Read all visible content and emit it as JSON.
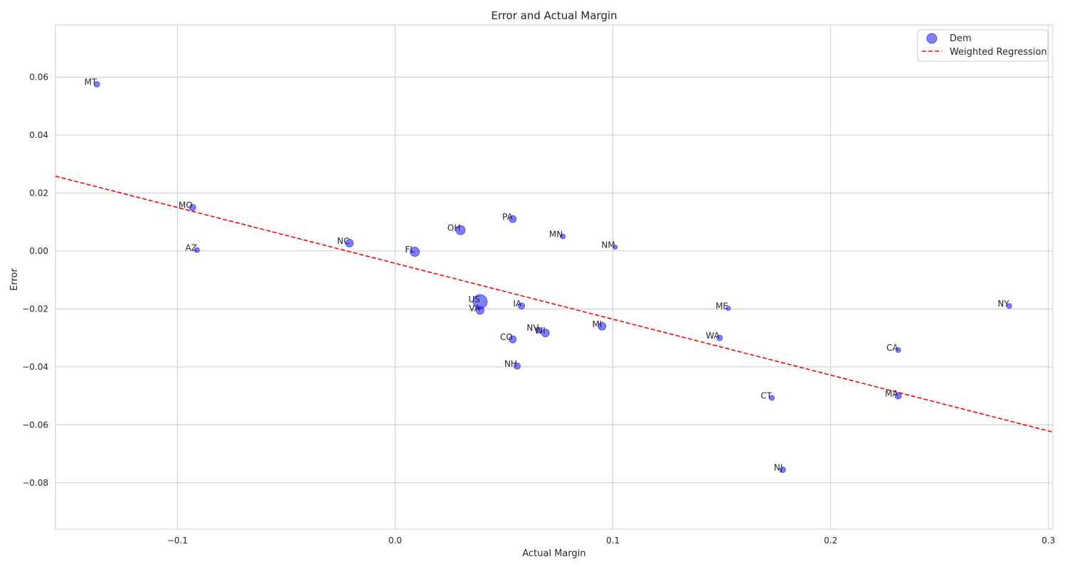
{
  "chart_data": {
    "type": "scatter",
    "title": "Error and Actual Margin",
    "xlabel": "Actual Margin",
    "ylabel": "Error",
    "xlim": [
      -0.156,
      0.302
    ],
    "ylim": [
      -0.096,
      0.078
    ],
    "x_ticks": [
      -0.1,
      0.0,
      0.1,
      0.2,
      0.3
    ],
    "x_tick_labels": [
      "−0.1",
      "0.0",
      "0.1",
      "0.2",
      "0.3"
    ],
    "y_ticks": [
      0.06,
      0.04,
      0.02,
      0.0,
      -0.02,
      -0.04,
      -0.06,
      -0.08
    ],
    "y_tick_labels": [
      "0.06",
      "0.04",
      "0.02",
      "0.00",
      "−0.02",
      "−0.04",
      "−0.06",
      "−0.08"
    ],
    "grid": true,
    "legend": {
      "placement": "top-right",
      "entries": [
        "Dem",
        "Weighted Regression"
      ]
    },
    "series": [
      {
        "name": "Dem",
        "color": "#0000ff",
        "points": [
          {
            "label": "MT",
            "x": -0.137,
            "y": 0.0575,
            "size": 4
          },
          {
            "label": "MO",
            "x": -0.093,
            "y": 0.015,
            "size": 4.5
          },
          {
            "label": "AZ",
            "x": -0.091,
            "y": 0.0003,
            "size": 3.5
          },
          {
            "label": "NC",
            "x": -0.021,
            "y": 0.0027,
            "size": 5.5
          },
          {
            "label": "FL",
            "x": 0.009,
            "y": -0.0003,
            "size": 6.5
          },
          {
            "label": "OH",
            "x": 0.03,
            "y": 0.0072,
            "size": 6.5
          },
          {
            "label": "PA",
            "x": 0.054,
            "y": 0.011,
            "size": 5
          },
          {
            "label": "MN",
            "x": 0.077,
            "y": 0.005,
            "size": 3.5
          },
          {
            "label": "NM",
            "x": 0.101,
            "y": 0.0013,
            "size": 3
          },
          {
            "label": "US",
            "x": 0.039,
            "y": -0.0175,
            "size": 10
          },
          {
            "label": "VA",
            "x": 0.039,
            "y": -0.0205,
            "size": 5.5
          },
          {
            "label": "IA",
            "x": 0.058,
            "y": -0.019,
            "size": 4.5
          },
          {
            "label": "NV",
            "x": 0.066,
            "y": -0.0273,
            "size": 4
          },
          {
            "label": "WI",
            "x": 0.069,
            "y": -0.0283,
            "size": 5.5
          },
          {
            "label": "MI",
            "x": 0.095,
            "y": -0.026,
            "size": 5.5
          },
          {
            "label": "CO",
            "x": 0.054,
            "y": -0.0305,
            "size": 5
          },
          {
            "label": "NH",
            "x": 0.056,
            "y": -0.0397,
            "size": 4.5
          },
          {
            "label": "ME",
            "x": 0.153,
            "y": -0.0198,
            "size": 3
          },
          {
            "label": "WA",
            "x": 0.149,
            "y": -0.03,
            "size": 4
          },
          {
            "label": "CT",
            "x": 0.173,
            "y": -0.0507,
            "size": 3.5
          },
          {
            "label": "NJ",
            "x": 0.178,
            "y": -0.0755,
            "size": 4
          },
          {
            "label": "CA",
            "x": 0.231,
            "y": -0.0342,
            "size": 3.5
          },
          {
            "label": "MA",
            "x": 0.231,
            "y": -0.05,
            "size": 4.5
          },
          {
            "label": "NY",
            "x": 0.282,
            "y": -0.019,
            "size": 3.5
          }
        ]
      }
    ],
    "regression": {
      "name": "Weighted Regression",
      "color": "#ff0000",
      "line": [
        [
          -0.156,
          0.0258
        ],
        [
          0.302,
          -0.0625
        ]
      ]
    }
  }
}
